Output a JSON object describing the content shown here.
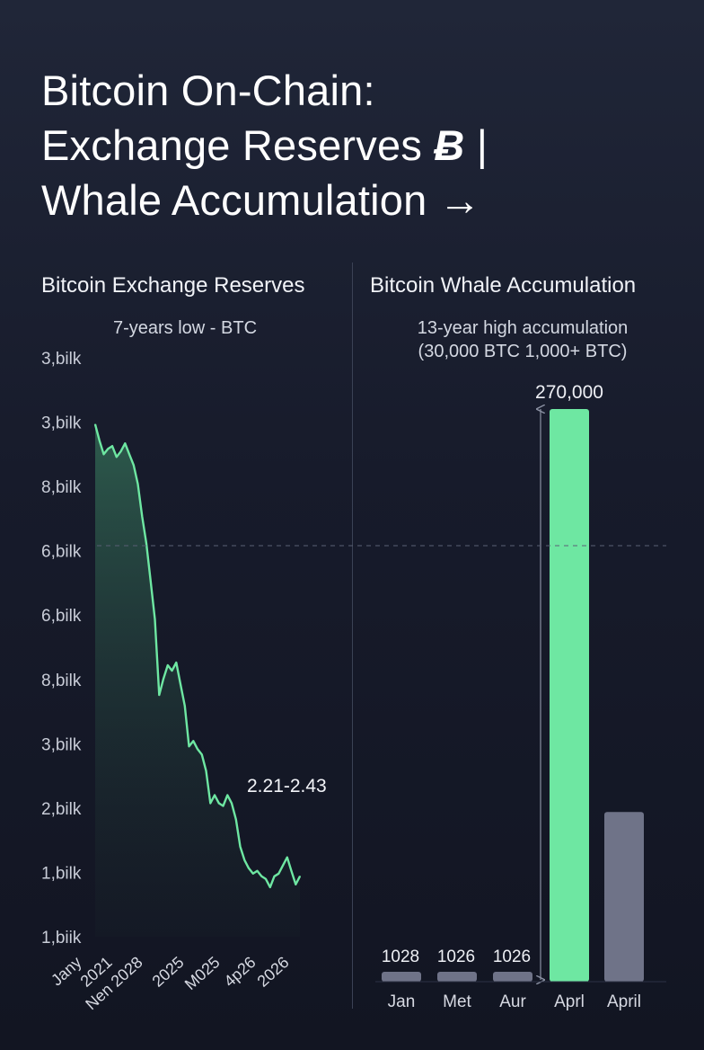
{
  "title": {
    "line1": "Bitcoin On-Chain:",
    "line2_text": "Exchange Reserves ",
    "line2_symbol": "Ƀ",
    "line2_sep": " |",
    "line3": "Whale Accumulation →"
  },
  "colors": {
    "accent_green": "#6ee7a2",
    "bar_gray": "#6f7388",
    "gridline": "#596075"
  },
  "chart_data": [
    {
      "type": "area",
      "title": "Bitcoin Exchange Reserves",
      "subtitle": "7-years low - BTC",
      "y_tick_labels": [
        "3,bilk",
        "3,bilk",
        "8,bilk",
        "6,bilk",
        "6,bilk",
        "8,bilk",
        "3,bilk",
        "2,bilk",
        "1,bilk",
        "1,biik"
      ],
      "x_tick_labels": [
        "Jany",
        "2021",
        "Nen 2028",
        "2025",
        "M025",
        "4p26",
        "2026"
      ],
      "annotation": "2.21-2.43",
      "series": [
        {
          "values": [
            9.3,
            9.0,
            8.75,
            8.85,
            8.9,
            8.7,
            8.8,
            8.95,
            8.75,
            8.55,
            8.2,
            7.6,
            7.1,
            6.4,
            5.7,
            4.3,
            4.6,
            4.85,
            4.75,
            4.9,
            4.5,
            4.1,
            3.35,
            3.45,
            3.3,
            3.2,
            2.9,
            2.3,
            2.45,
            2.3,
            2.25,
            2.45,
            2.3,
            2.0,
            1.5,
            1.25,
            1.1,
            1.0,
            1.05,
            0.95,
            0.9,
            0.75,
            0.95,
            1.0,
            1.15,
            1.3,
            1.05,
            0.8,
            0.95
          ]
        }
      ]
    },
    {
      "type": "bar",
      "title": "Bitcoin Whale Accumulation",
      "subtitle_lines": [
        "13-year high accumulation",
        "(30,000 BTC  1,000+ BTC)"
      ],
      "categories": [
        "Jan",
        "Met",
        "Aur",
        "Aprl",
        "April"
      ],
      "values": [
        1028,
        1026,
        1026,
        270000,
        80000
      ],
      "data_labels": [
        "1028",
        "1026",
        "1026",
        "270,000",
        ""
      ],
      "highlight_index": 3
    }
  ]
}
